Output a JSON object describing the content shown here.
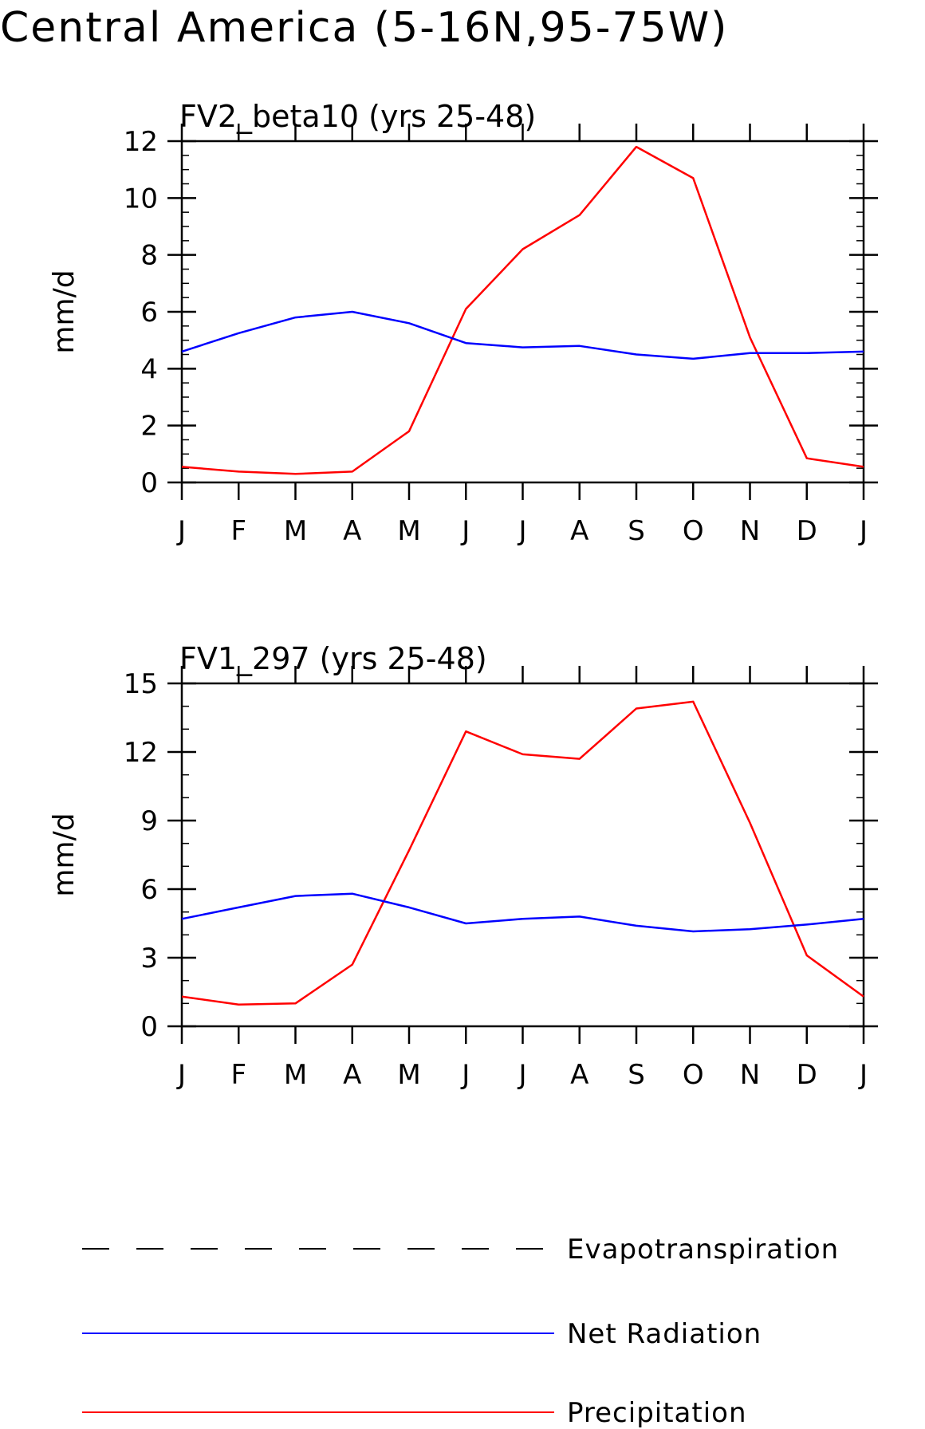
{
  "title": "Central America (5-16N,95-75W)",
  "colors": {
    "precip": "#ff0000",
    "netrad": "#0000ff",
    "evap": "#000000"
  },
  "legend": [
    {
      "name": "Evapotranspiration",
      "color": "#000000",
      "style": "dashed"
    },
    {
      "name": "Net Radiation",
      "color": "#0000ff",
      "style": "solid"
    },
    {
      "name": "Precipitation",
      "color": "#ff0000",
      "style": "solid"
    }
  ],
  "chart_data": [
    {
      "type": "line",
      "title": "FV2_beta10 (yrs 25-48)",
      "ylabel": "mm/d",
      "xlabel": "",
      "ylim": [
        0,
        12
      ],
      "ytick_step": 2,
      "yminor_step": 0.5,
      "categories": [
        "J",
        "F",
        "M",
        "A",
        "M",
        "J",
        "J",
        "A",
        "S",
        "O",
        "N",
        "D",
        "J"
      ],
      "series": [
        {
          "name": "Precipitation",
          "color": "#ff0000",
          "values": [
            0.55,
            0.38,
            0.3,
            0.38,
            1.8,
            6.1,
            8.2,
            9.4,
            11.8,
            10.7,
            5.1,
            0.85,
            0.55
          ]
        },
        {
          "name": "Net Radiation",
          "color": "#0000ff",
          "values": [
            4.6,
            5.25,
            5.8,
            6.0,
            5.6,
            4.9,
            4.75,
            4.8,
            4.5,
            4.35,
            4.55,
            4.55,
            4.6
          ]
        }
      ]
    },
    {
      "type": "line",
      "title": "FV1_297 (yrs 25-48)",
      "ylabel": "mm/d",
      "xlabel": "",
      "ylim": [
        0,
        15
      ],
      "ytick_step": 3,
      "yminor_step": 1,
      "categories": [
        "J",
        "F",
        "M",
        "A",
        "M",
        "J",
        "J",
        "A",
        "S",
        "O",
        "N",
        "D",
        "J"
      ],
      "series": [
        {
          "name": "Precipitation",
          "color": "#ff0000",
          "values": [
            1.3,
            0.95,
            1.0,
            2.7,
            7.7,
            12.9,
            11.9,
            11.7,
            13.9,
            14.2,
            8.9,
            3.1,
            1.3
          ]
        },
        {
          "name": "Net Radiation",
          "color": "#0000ff",
          "values": [
            4.7,
            5.2,
            5.7,
            5.8,
            5.2,
            4.5,
            4.7,
            4.8,
            4.4,
            4.15,
            4.25,
            4.45,
            4.7
          ]
        }
      ]
    }
  ]
}
